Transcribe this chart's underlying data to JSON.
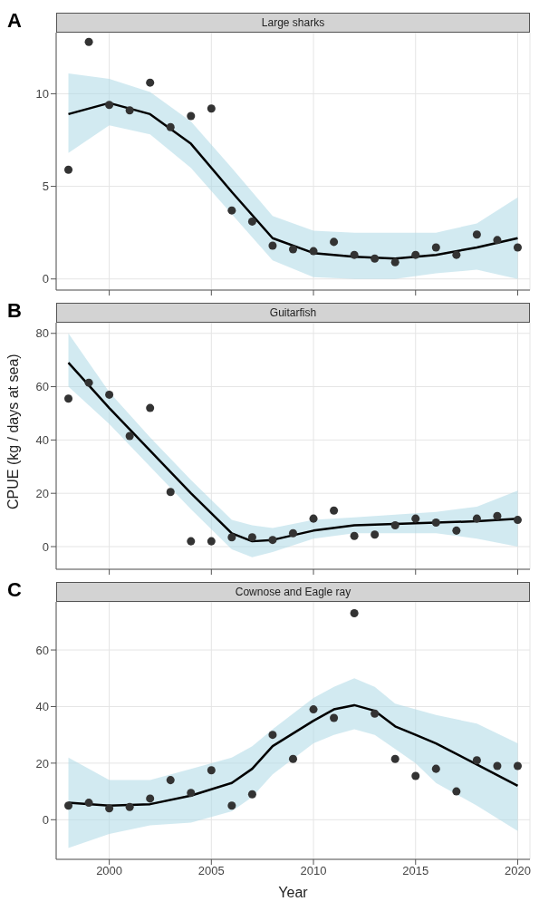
{
  "chart_data": [
    {
      "type": "scatter",
      "title": "Large sharks",
      "annotations": [
        "A"
      ],
      "x": [
        1998,
        1999,
        2000,
        2001,
        2002,
        2003,
        2004,
        2005,
        2006,
        2007,
        2008,
        2009,
        2010,
        2011,
        2012,
        2013,
        2014,
        2015,
        2016,
        2017,
        2018,
        2019,
        2020
      ],
      "xlim": [
        1997.4,
        2020.6
      ],
      "xticks": [
        2000,
        2005,
        2010,
        2015,
        2020
      ],
      "ylim": [
        -0.6,
        13.3
      ],
      "yticks": [
        0,
        5,
        10
      ],
      "grid": true,
      "tick_labels": "y",
      "series": [
        {
          "marker": "circle",
          "color": "#333333",
          "values": [
            5.9,
            12.8,
            9.4,
            9.1,
            10.6,
            8.2,
            8.8,
            9.2,
            3.7,
            3.1,
            1.8,
            1.6,
            1.5,
            2.0,
            1.3,
            1.1,
            0.9,
            1.3,
            1.7,
            1.3,
            2.4,
            2.1,
            1.7
          ]
        },
        {
          "type": "line",
          "marker": "none",
          "color": "#000000",
          "x": [
            1998,
            2000,
            2002,
            2004,
            2006,
            2008,
            2010,
            2012,
            2014,
            2016,
            2018,
            2020
          ],
          "values": [
            8.9,
            9.5,
            8.9,
            7.3,
            4.7,
            2.2,
            1.4,
            1.2,
            1.1,
            1.3,
            1.7,
            2.2
          ],
          "lower": [
            6.8,
            8.3,
            7.8,
            6.0,
            3.5,
            1.0,
            0.1,
            0.0,
            0.0,
            0.3,
            0.5,
            0.0
          ],
          "upper": [
            11.1,
            10.8,
            10.1,
            8.5,
            6.0,
            3.4,
            2.6,
            2.5,
            2.5,
            2.5,
            3.0,
            4.4
          ]
        }
      ]
    },
    {
      "type": "scatter",
      "title": "Guitarfish",
      "annotations": [
        "B"
      ],
      "ylabel": "CPUE (kg / days at sea)",
      "x": [
        1998,
        1999,
        2000,
        2001,
        2002,
        2003,
        2004,
        2005,
        2006,
        2007,
        2008,
        2009,
        2010,
        2011,
        2012,
        2013,
        2014,
        2015,
        2016,
        2017,
        2018,
        2019,
        2020
      ],
      "xlim": [
        1997.4,
        2020.6
      ],
      "xticks": [
        2000,
        2005,
        2010,
        2015,
        2020
      ],
      "ylim": [
        -8.5,
        84
      ],
      "yticks": [
        0,
        20,
        40,
        60,
        80
      ],
      "grid": true,
      "tick_labels": "y",
      "series": [
        {
          "marker": "circle",
          "color": "#333333",
          "values": [
            55.5,
            61.5,
            57,
            41.5,
            52,
            20.5,
            2,
            2,
            3.5,
            3.5,
            2.5,
            5,
            10.5,
            13.5,
            4,
            4.5,
            8,
            10.5,
            9,
            6,
            10.5,
            11.5,
            10
          ]
        },
        {
          "type": "line",
          "marker": "none",
          "color": "#000000",
          "x": [
            1998,
            2000,
            2002,
            2004,
            2006,
            2007,
            2008,
            2010,
            2012,
            2014,
            2016,
            2018,
            2020
          ],
          "values": [
            69,
            52,
            36,
            20,
            5,
            2,
            2.5,
            6,
            8,
            8.5,
            9,
            9.5,
            10.5
          ],
          "lower": [
            60,
            46,
            30,
            14,
            -1,
            -4,
            -2,
            3,
            5,
            5,
            5,
            3,
            0
          ],
          "upper": [
            80,
            58,
            41,
            25,
            10,
            8,
            7,
            10,
            11,
            12,
            13,
            15,
            21
          ]
        }
      ]
    },
    {
      "type": "scatter",
      "title": "Cownose and Eagle ray",
      "annotations": [
        "C"
      ],
      "xlabel": "Year",
      "x": [
        1998,
        1999,
        2000,
        2001,
        2002,
        2003,
        2004,
        2005,
        2006,
        2007,
        2008,
        2009,
        2010,
        2011,
        2012,
        2013,
        2014,
        2015,
        2016,
        2017,
        2018,
        2019,
        2020
      ],
      "xlim": [
        1997.4,
        2020.6
      ],
      "xticks": [
        2000,
        2005,
        2010,
        2015,
        2020
      ],
      "ylim": [
        -14,
        77
      ],
      "yticks": [
        0,
        20,
        40,
        60
      ],
      "grid": true,
      "series": [
        {
          "marker": "circle",
          "color": "#333333",
          "values": [
            5,
            6,
            4,
            4.5,
            7.5,
            14,
            9.5,
            17.5,
            5,
            9,
            30,
            21.5,
            39,
            36,
            73,
            37.5,
            21.5,
            15.5,
            18,
            10,
            21,
            19,
            19
          ]
        },
        {
          "type": "line",
          "marker": "none",
          "color": "#000000",
          "x": [
            1998,
            2000,
            2002,
            2004,
            2006,
            2007,
            2008,
            2010,
            2011,
            2012,
            2013,
            2014,
            2015,
            2016,
            2018,
            2020
          ],
          "values": [
            6,
            5,
            5.5,
            8.5,
            13,
            18,
            26,
            35,
            39,
            40.5,
            38.5,
            33,
            30,
            27,
            19.5,
            12
          ],
          "lower": [
            -10,
            -5,
            -2,
            -1,
            3,
            8,
            16,
            27,
            30,
            32,
            30,
            25,
            20,
            13,
            5,
            -4
          ],
          "upper": [
            22,
            14,
            14,
            18,
            22,
            26,
            32,
            43,
            47,
            50,
            47,
            41,
            39,
            37,
            34,
            27
          ]
        }
      ]
    }
  ]
}
